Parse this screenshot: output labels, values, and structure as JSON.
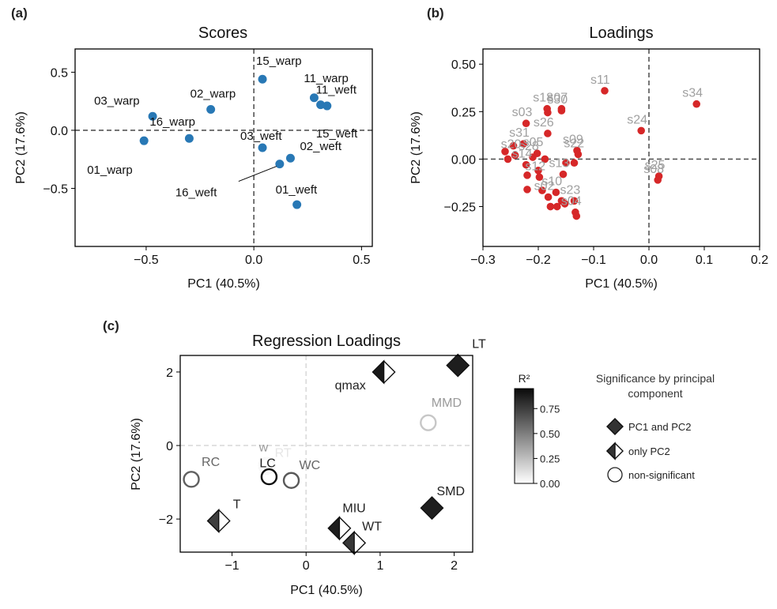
{
  "chart_data": [
    {
      "panel": "(a)",
      "type": "scatter",
      "title": "Scores",
      "xlabel": "PC1 (40.5%)",
      "ylabel": "PC2 (17.6%)",
      "xlim": [
        -0.83,
        0.55
      ],
      "ylim": [
        -1.0,
        0.7
      ],
      "xticks": [
        -0.5,
        0.0,
        0.5
      ],
      "xtick_labels": [
        "−0.5",
        "0.0",
        "0.5"
      ],
      "yticks": [
        -0.5,
        0.0,
        0.5
      ],
      "ytick_labels": [
        "−0.5",
        "0.0",
        "0.5"
      ],
      "color": "#2878b5",
      "points": [
        {
          "label": "01_warp",
          "x": -0.51,
          "y": -0.09
        },
        {
          "label": "03_warp",
          "x": -0.47,
          "y": 0.12
        },
        {
          "label": "02_warp",
          "x": -0.2,
          "y": 0.18
        },
        {
          "label": "16_warp",
          "x": -0.3,
          "y": -0.07
        },
        {
          "label": "15_warp",
          "x": 0.04,
          "y": 0.44
        },
        {
          "label": "11_warp",
          "x": 0.28,
          "y": 0.28
        },
        {
          "label": "11_weft",
          "x": 0.31,
          "y": 0.22
        },
        {
          "label": "15_weft",
          "x": 0.34,
          "y": 0.21
        },
        {
          "label": "03_weft",
          "x": 0.04,
          "y": -0.15
        },
        {
          "label": "02_weft",
          "x": 0.17,
          "y": -0.24
        },
        {
          "label": "16_weft",
          "x": 0.12,
          "y": -0.29
        },
        {
          "label": "01_weft",
          "x": 0.2,
          "y": -0.64
        }
      ]
    },
    {
      "panel": "(b)",
      "type": "scatter",
      "title": "Loadings",
      "xlabel": "PC1 (40.5%)",
      "ylabel": "PC2 (17.6%)",
      "xlim": [
        -0.3,
        0.2
      ],
      "ylim": [
        -0.46,
        0.58
      ],
      "xticks": [
        -0.3,
        -0.2,
        -0.1,
        0.0,
        0.1,
        0.2
      ],
      "xtick_labels": [
        "−0.3",
        "−0.2",
        "−0.1",
        "0.0",
        "0.1",
        "0.2"
      ],
      "yticks": [
        -0.25,
        0.0,
        0.25,
        0.5
      ],
      "ytick_labels": [
        "−0.25",
        "0.00",
        "0.25",
        "0.50"
      ],
      "color": "#d62728",
      "label_color": "#a0a0a0",
      "points": [
        {
          "x": -0.08,
          "y": 0.36,
          "label": "s11"
        },
        {
          "x": 0.086,
          "y": 0.29,
          "label": "s34"
        },
        {
          "x": -0.014,
          "y": 0.15,
          "label": "s24"
        },
        {
          "x": -0.184,
          "y": 0.265,
          "label": "s18"
        },
        {
          "x": -0.158,
          "y": 0.265,
          "label": "s07"
        },
        {
          "x": -0.158,
          "y": 0.255,
          "label": "s30"
        },
        {
          "x": -0.183,
          "y": 0.245,
          "label": ""
        },
        {
          "x": -0.222,
          "y": 0.188,
          "label": "s03"
        },
        {
          "x": -0.183,
          "y": 0.135,
          "label": "s26"
        },
        {
          "x": -0.227,
          "y": 0.08,
          "label": "s31"
        },
        {
          "x": -0.245,
          "y": 0.07,
          "label": ""
        },
        {
          "x": -0.26,
          "y": 0.04,
          "label": ""
        },
        {
          "x": -0.242,
          "y": 0.02,
          "label": "s20"
        },
        {
          "x": -0.255,
          "y": 0.0,
          "label": ""
        },
        {
          "x": -0.202,
          "y": 0.03,
          "label": "s05"
        },
        {
          "x": -0.21,
          "y": 0.01,
          "label": "s28"
        },
        {
          "x": -0.188,
          "y": 0.0,
          "label": ""
        },
        {
          "x": -0.222,
          "y": -0.03,
          "label": "s14"
        },
        {
          "x": -0.2,
          "y": -0.06,
          "label": ""
        },
        {
          "x": -0.22,
          "y": -0.085,
          "label": ""
        },
        {
          "x": -0.155,
          "y": -0.08,
          "label": "s13"
        },
        {
          "x": -0.13,
          "y": 0.045,
          "label": "s09"
        },
        {
          "x": -0.128,
          "y": 0.025,
          "label": "s22"
        },
        {
          "x": -0.135,
          "y": -0.02,
          "label": ""
        },
        {
          "x": -0.15,
          "y": -0.02,
          "label": ""
        },
        {
          "x": -0.198,
          "y": -0.095,
          "label": "s12"
        },
        {
          "x": -0.22,
          "y": -0.16,
          "label": ""
        },
        {
          "x": -0.193,
          "y": -0.165,
          "label": ""
        },
        {
          "x": -0.168,
          "y": -0.175,
          "label": "s10"
        },
        {
          "x": -0.182,
          "y": -0.2,
          "label": "s02"
        },
        {
          "x": -0.158,
          "y": -0.22,
          "label": ""
        },
        {
          "x": -0.152,
          "y": -0.235,
          "label": ""
        },
        {
          "x": -0.178,
          "y": -0.25,
          "label": ""
        },
        {
          "x": -0.166,
          "y": -0.25,
          "label": ""
        },
        {
          "x": -0.135,
          "y": -0.22,
          "label": "s23"
        },
        {
          "x": -0.133,
          "y": -0.28,
          "label": "s04"
        },
        {
          "x": -0.131,
          "y": -0.3,
          "label": ""
        },
        {
          "x": 0.018,
          "y": -0.09,
          "label": "s25"
        },
        {
          "x": 0.016,
          "y": -0.11,
          "label": "s08"
        }
      ]
    },
    {
      "panel": "(c)",
      "type": "scatter",
      "title": "Regression Loadings",
      "xlabel": "PC1 (40.5%)",
      "ylabel": "PC2 (17.6%)",
      "xlim": [
        -1.7,
        2.25
      ],
      "ylim": [
        -2.9,
        2.45
      ],
      "xticks": [
        -1,
        0,
        1,
        2
      ],
      "xtick_labels": [
        "−1",
        "0",
        "1",
        "2"
      ],
      "yticks": [
        -2,
        0,
        2
      ],
      "ytick_labels": [
        "−2",
        "0",
        "2"
      ],
      "color_scale": {
        "title": "R²",
        "min": 0.0,
        "max": 0.95,
        "ticks": [
          0.0,
          0.25,
          0.5,
          0.75
        ],
        "tick_labels": [
          "0.00",
          "0.25",
          "0.50",
          "0.75"
        ]
      },
      "points": [
        {
          "label": "LT",
          "x": 2.05,
          "y": 2.18,
          "shape": "diamond",
          "r2": 0.88
        },
        {
          "label": "qmax",
          "x": 1.05,
          "y": 2.0,
          "shape": "half-diamond",
          "r2": 0.9
        },
        {
          "label": "MMD",
          "x": 1.65,
          "y": 0.62,
          "shape": "circle",
          "r2": 0.22
        },
        {
          "label": "SMD",
          "x": 1.7,
          "y": -1.7,
          "shape": "diamond",
          "r2": 0.88
        },
        {
          "label": "MIU",
          "x": 0.45,
          "y": -2.25,
          "shape": "half-diamond",
          "r2": 0.88
        },
        {
          "label": "WT",
          "x": 0.65,
          "y": -2.65,
          "shape": "half-diamond",
          "r2": 0.78
        },
        {
          "label": "w",
          "x": -0.53,
          "y": -0.55,
          "shape": "circle",
          "r2": 0.3
        },
        {
          "label": "RT",
          "x": -0.53,
          "y": -0.55,
          "shape": "circle",
          "r2": 0.02
        },
        {
          "label": "LC",
          "x": -0.5,
          "y": -0.85,
          "shape": "circle",
          "r2": 0.97
        },
        {
          "label": "WC",
          "x": -0.2,
          "y": -0.95,
          "shape": "circle",
          "r2": 0.65
        },
        {
          "label": "RC",
          "x": -1.55,
          "y": -0.92,
          "shape": "circle",
          "r2": 0.62
        },
        {
          "label": "T",
          "x": -1.18,
          "y": -2.05,
          "shape": "half-diamond",
          "r2": 0.75
        }
      ],
      "legend": {
        "title": "Significance by principal component",
        "items": [
          {
            "shape": "diamond",
            "label": "PC1 and PC2"
          },
          {
            "shape": "half-diamond",
            "label": "only PC2"
          },
          {
            "shape": "circle",
            "label": "non-significant"
          }
        ]
      }
    }
  ]
}
